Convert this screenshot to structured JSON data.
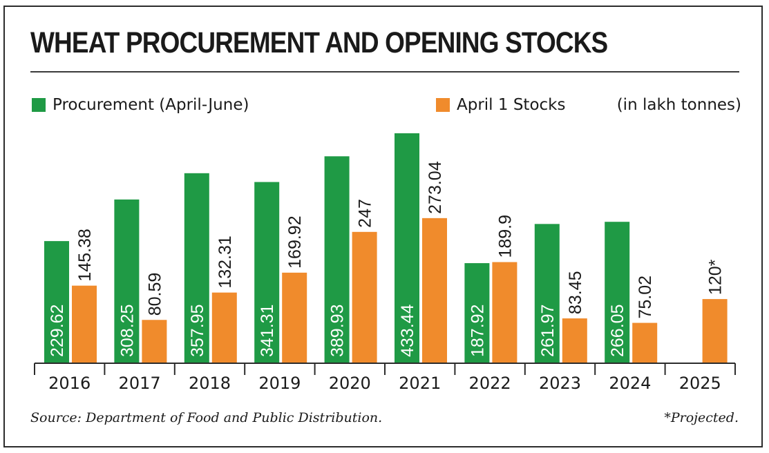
{
  "title": "WHEAT PROCUREMENT AND OPENING STOCKS",
  "units": "(in lakh tonnes)",
  "source": "Source: Department of Food and Public Distribution.",
  "note": "*Projected.",
  "colors": {
    "procurement": "#1f9a45",
    "stocks": "#f08b2c",
    "text": "#1a1a1a"
  },
  "chart_data": {
    "type": "bar",
    "categories": [
      "2016",
      "2017",
      "2018",
      "2019",
      "2020",
      "2021",
      "2022",
      "2023",
      "2024",
      "2025"
    ],
    "series": [
      {
        "name": "Procurement (April-June)",
        "values": [
          229.62,
          308.25,
          357.95,
          341.31,
          389.93,
          433.44,
          187.92,
          261.97,
          266.05,
          null
        ],
        "labels": [
          "229.62",
          "308.25",
          "357.95",
          "341.31",
          "389.93",
          "433.44",
          "187.92",
          "261.97",
          "266.05",
          ""
        ]
      },
      {
        "name": "April 1 Stocks",
        "values": [
          145.38,
          80.59,
          132.31,
          169.92,
          247,
          273.04,
          189.9,
          83.45,
          75.02,
          120
        ],
        "labels": [
          "145.38",
          "80.59",
          "132.31",
          "169.92",
          "247",
          "273.04",
          "189.9",
          "83.45",
          "75.02",
          "120*"
        ]
      }
    ],
    "ylim": [
      0,
      433.44
    ],
    "grid": false,
    "legend": "top-left"
  }
}
